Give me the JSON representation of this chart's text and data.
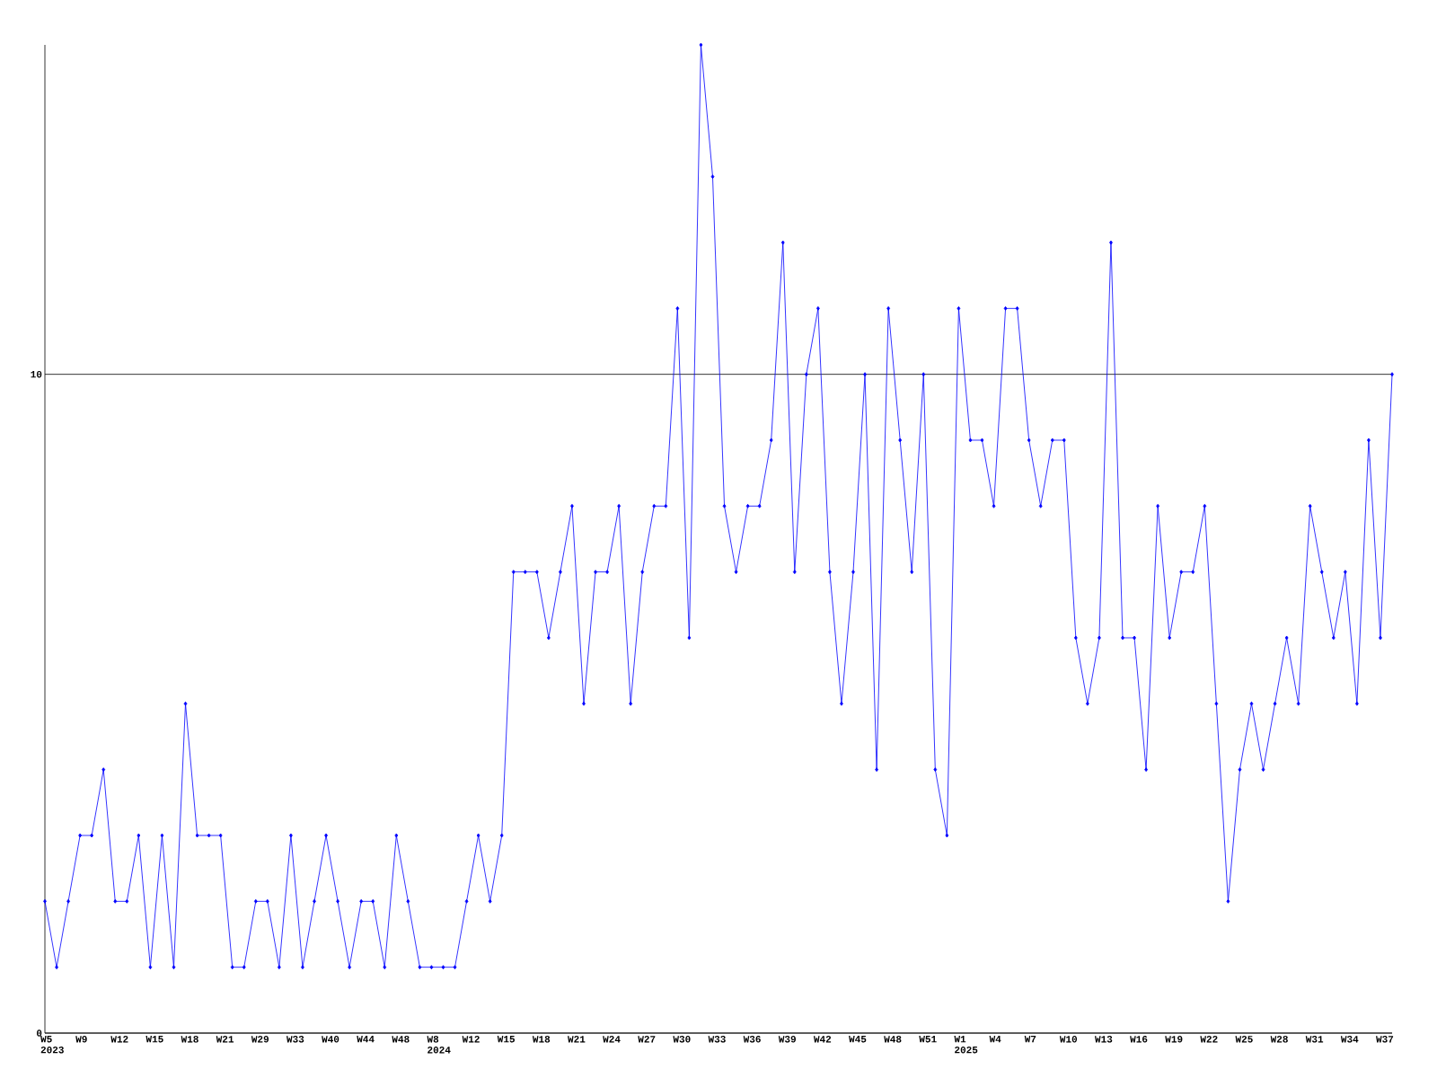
{
  "chart_data": {
    "type": "line",
    "categories": [
      "W5 2023",
      null,
      null,
      "W9",
      null,
      null,
      "W12",
      null,
      null,
      "W15",
      null,
      null,
      "W18",
      null,
      null,
      "W21",
      null,
      null,
      "W29",
      null,
      null,
      "W33",
      null,
      null,
      "W40",
      null,
      null,
      "W44",
      null,
      null,
      "W48",
      null,
      null,
      "W8 2024",
      null,
      null,
      "W12",
      null,
      null,
      "W15",
      null,
      null,
      "W18",
      null,
      null,
      "W21",
      null,
      null,
      "W24",
      null,
      null,
      "W27",
      null,
      null,
      "W30",
      null,
      null,
      "W33",
      null,
      null,
      "W36",
      null,
      null,
      "W39",
      null,
      null,
      "W42",
      null,
      null,
      "W45",
      null,
      null,
      "W48",
      null,
      null,
      "W51",
      null,
      null,
      "W1 2025",
      null,
      null,
      "W4",
      null,
      null,
      "W7",
      null,
      null,
      "W10",
      null,
      null,
      "W13",
      null,
      null,
      "W16",
      null,
      null,
      "W19",
      null,
      null,
      "W22",
      null,
      null,
      "W25",
      null,
      null,
      "W28",
      null,
      null,
      "W31",
      null,
      null,
      "W34",
      null,
      null,
      "W37",
      null
    ],
    "values": [
      2,
      1,
      2,
      3,
      3,
      4,
      2,
      2,
      3,
      1,
      3,
      1,
      5,
      3,
      3,
      3,
      1,
      1,
      2,
      2,
      1,
      3,
      1,
      2,
      3,
      2,
      1,
      2,
      2,
      1,
      3,
      2,
      1,
      1,
      1,
      1,
      2,
      3,
      2,
      3,
      7,
      7,
      7,
      6,
      7,
      8,
      5,
      7,
      7,
      8,
      5,
      7,
      8,
      8,
      11,
      6,
      15,
      13,
      8,
      7,
      8,
      8,
      9,
      12,
      7,
      10,
      11,
      7,
      5,
      7,
      10,
      4,
      11,
      9,
      7,
      10,
      4,
      3,
      11,
      9,
      9,
      8,
      11,
      11,
      9,
      8,
      9,
      9,
      6,
      5,
      6,
      12,
      6,
      6,
      4,
      8,
      6,
      7,
      7,
      8,
      5,
      2,
      4,
      5,
      4,
      5,
      6,
      5,
      8,
      7,
      6,
      7,
      5,
      9,
      6,
      10
    ],
    "color": "#0000ff",
    "marker": "diamond",
    "grid": "y",
    "ylim": [
      0,
      15
    ],
    "yticks": [
      0,
      10
    ]
  }
}
